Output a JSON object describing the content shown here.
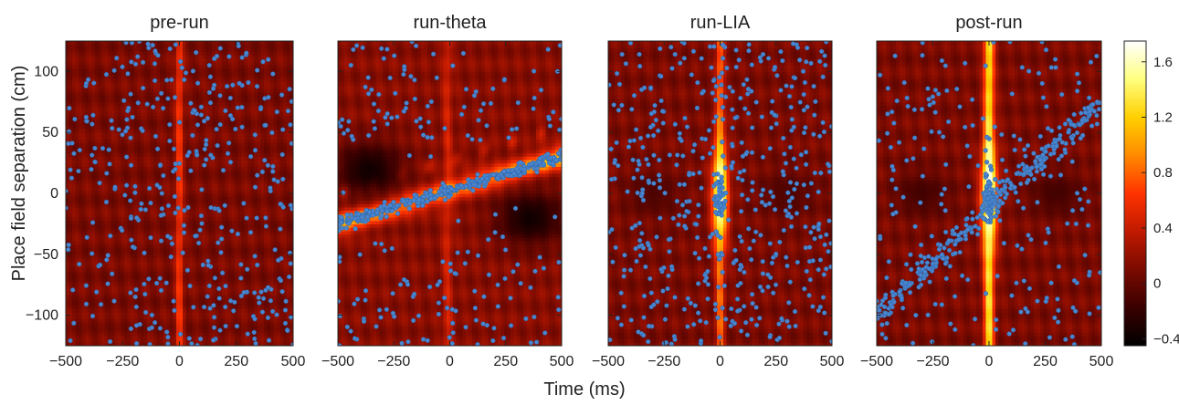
{
  "chart_data": [
    {
      "type": "heatmap",
      "title": "pre-run",
      "xlabel": "Time (ms)",
      "ylabel": "Place field separation (cm)",
      "xlim": [
        -500,
        500
      ],
      "ylim": [
        -125,
        125
      ],
      "xticks": [
        -500,
        -250,
        0,
        250,
        500
      ],
      "yticks": [
        -100,
        -50,
        0,
        50,
        100
      ],
      "background_level": 0.1,
      "ridge": {
        "center_ms": 0,
        "width_ms": 16,
        "peak": 0.55,
        "band_peak": 0
      },
      "scatter_points": 400,
      "scatter_trend": null
    },
    {
      "type": "heatmap",
      "title": "run-theta",
      "xlabel": "",
      "ylabel": "",
      "xlim": [
        -500,
        500
      ],
      "ylim": [
        -125,
        125
      ],
      "xticks": [
        -500,
        -250,
        0,
        250,
        500
      ],
      "yticks": [
        -100,
        -50,
        0,
        50,
        100
      ],
      "background_level": 0.15,
      "ridge": {
        "center_ms": -10,
        "width_ms": 20,
        "peak": 0.3,
        "band_peak": 1.0
      },
      "diagonal_band": {
        "y_at_start_cm": -25,
        "y_at_end_cm": 30
      },
      "dark_regions": [
        {
          "center_ms": -360,
          "center_cm": 20,
          "level": -0.4
        },
        {
          "center_ms": 360,
          "center_cm": -20,
          "level": -0.4
        }
      ],
      "scatter_points": 600,
      "scatter_trend": {
        "y_at_start_cm": -25,
        "y_at_end_cm": 30
      }
    },
    {
      "type": "heatmap",
      "title": "run-LIA",
      "xlabel": "",
      "ylabel": "",
      "xlim": [
        -500,
        500
      ],
      "ylim": [
        -125,
        125
      ],
      "xticks": [
        -500,
        -250,
        0,
        250,
        500
      ],
      "yticks": [
        -100,
        -50,
        0,
        50,
        100
      ],
      "background_level": 0.1,
      "ridge": {
        "center_ms": 0,
        "width_ms": 18,
        "peak": 0.75,
        "band_peak": 0
      },
      "center_peak": 1.7,
      "dark_regions": [
        {
          "center_ms": -300,
          "center_cm": 0,
          "level": -0.1
        },
        {
          "center_ms": 300,
          "center_cm": 0,
          "level": -0.1
        }
      ],
      "scatter_points": 500,
      "scatter_trend": null
    },
    {
      "type": "heatmap",
      "title": "post-run",
      "xlabel": "",
      "ylabel": "",
      "xlim": [
        -500,
        500
      ],
      "ylim": [
        -125,
        125
      ],
      "xticks": [
        -500,
        -250,
        0,
        250,
        500
      ],
      "yticks": [
        -100,
        -50,
        0,
        50,
        100
      ],
      "background_level": 0.1,
      "ridge": {
        "center_ms": 0,
        "width_ms": 22,
        "peak": 1.25,
        "band_peak": 0
      },
      "center_peak": 1.75,
      "dark_regions": [
        {
          "center_ms": -300,
          "center_cm": 0,
          "level": -0.15
        },
        {
          "center_ms": 300,
          "center_cm": 0,
          "level": -0.15
        }
      ],
      "scatter_points": 500,
      "scatter_trend": {
        "y_at_start_cm": -100,
        "y_at_end_cm": 75
      }
    }
  ],
  "colorbar": {
    "range": [
      -0.45,
      1.75
    ],
    "ticks": [
      -0.4,
      0,
      0.4,
      0.8,
      1.2,
      1.6
    ],
    "colormap": [
      "#000000",
      "#3a0000",
      "#7a0a00",
      "#c01a00",
      "#ff3300",
      "#ff8a00",
      "#ffd000",
      "#ffff80",
      "#ffffff"
    ]
  },
  "shared_xlabel": "Time (ms)",
  "scatter_color": "#4a86cf"
}
